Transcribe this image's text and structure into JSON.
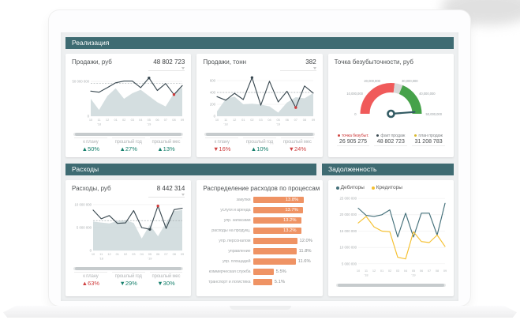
{
  "sections": {
    "realization": {
      "title": "Реализация"
    },
    "expenses": {
      "title": "Расходы"
    },
    "debt": {
      "title": "Задолженность"
    }
  },
  "panels": {
    "sales_rub": {
      "title": "Продажи, руб",
      "value": "48 802 723",
      "kpis": [
        {
          "label": "к плану",
          "arrow": "▲",
          "value": "50%",
          "tone": "good"
        },
        {
          "label": "прошлый год",
          "arrow": "▲",
          "value": "27%",
          "tone": "good"
        },
        {
          "label": "прошлый мес",
          "arrow": "▲",
          "value": "13%",
          "tone": "good"
        }
      ]
    },
    "sales_tonn": {
      "title": "Продажи, тонн",
      "value": "382",
      "kpis": [
        {
          "label": "к плану",
          "arrow": "▼",
          "value": "16%",
          "tone": "bad"
        },
        {
          "label": "прошлый год",
          "arrow": "▲",
          "value": "10%",
          "tone": "good"
        },
        {
          "label": "прошлый мес",
          "arrow": "▼",
          "value": "24%",
          "tone": "bad"
        }
      ]
    },
    "breakeven": {
      "title": "Точка безубыточности, руб",
      "legend": [
        {
          "label": "точка безубыт.",
          "value": "26 905 275",
          "bullet": "#d04a45",
          "label_color": "#cf4040"
        },
        {
          "label": "факт продаж",
          "value": "48 802 723",
          "bullet": "#3b4a52",
          "label_color": "#85898c"
        },
        {
          "label": "план продаж",
          "value": "31 208 783",
          "bullet": "#d8b92e",
          "label_color": "#85898c"
        }
      ]
    },
    "expenses_rub": {
      "title": "Расходы, руб",
      "value": "8 442 314",
      "kpis": [
        {
          "label": "к плану",
          "arrow": "▲",
          "value": "63%",
          "tone": "bad"
        },
        {
          "label": "прошлый год",
          "arrow": "▼",
          "value": "29%",
          "tone": "good"
        },
        {
          "label": "прошлый мес",
          "arrow": "▼",
          "value": "30%",
          "tone": "good"
        }
      ]
    },
    "expenses_dist": {
      "title": "Распределение расходов по процессам"
    },
    "debt": {
      "legend": [
        {
          "label": "Дебиторы",
          "color": "#44707a"
        },
        {
          "label": "Кредиторы",
          "color": "#f5c02f"
        }
      ]
    }
  },
  "chart_data": [
    {
      "id": "sales_rub",
      "type": "line",
      "title": "Продажи, руб",
      "x": [
        "10",
        "11",
        "12",
        "01",
        "02",
        "03",
        "04",
        "05",
        "06",
        "07",
        "08",
        "09"
      ],
      "year_labels": [
        "'18",
        "'19"
      ],
      "ylim": [
        0,
        58000000
      ],
      "yticks": [
        {
          "v": 50000000,
          "label": "50 000 000"
        },
        {
          "v": 0,
          "label": "0"
        }
      ],
      "plan": 47000000,
      "series": [
        {
          "name": "факт",
          "color": "#3b4a52",
          "values": [
            36000000,
            34500000,
            41000000,
            48000000,
            50500000,
            50500000,
            41000000,
            55000000,
            37000000,
            47000000,
            31000000,
            44000000
          ]
        },
        {
          "name": "прошлый год",
          "area": true,
          "color": "#ccd8db",
          "values": [
            25000000,
            9000000,
            29000000,
            40000000,
            25000000,
            33000000,
            38000000,
            29000000,
            20000000,
            14000000,
            33000000,
            41000000
          ]
        }
      ],
      "dots": [
        {
          "i": 7,
          "color": "#3b4a52"
        },
        {
          "i": 10,
          "color": "#cf3a3a"
        }
      ]
    },
    {
      "id": "sales_tonn",
      "type": "line",
      "title": "Продажи, тонн",
      "x": [
        "10",
        "11",
        "12",
        "01",
        "02",
        "03",
        "04",
        "05",
        "06",
        "07",
        "08",
        "09"
      ],
      "year_labels": [
        "'18",
        "'19"
      ],
      "ylim": [
        0,
        680
      ],
      "yticks": [
        {
          "v": 600,
          "label": "600"
        },
        {
          "v": 400,
          "label": "400"
        },
        {
          "v": 200,
          "label": "200"
        },
        {
          "v": 0,
          "label": "0"
        }
      ],
      "plan": 400,
      "series": [
        {
          "name": "факт",
          "color": "#3b4a52",
          "values": [
            330,
            270,
            385,
            280,
            650,
            185,
            590,
            240,
            420,
            145,
            510,
            390
          ]
        },
        {
          "name": "прошлый год",
          "area": true,
          "color": "#ccd8db",
          "values": [
            80,
            290,
            330,
            200,
            210,
            195,
            165,
            60,
            230,
            320,
            300,
            390
          ]
        }
      ],
      "dots": [
        {
          "i": 4,
          "color": "#3b4a52"
        },
        {
          "i": 9,
          "color": "#cf3a3a"
        }
      ]
    },
    {
      "id": "breakeven",
      "type": "gauge",
      "title": "Точка безубыточности, руб",
      "min": 0,
      "max": 50000000,
      "ticks": [
        {
          "v": 0,
          "label": "0"
        },
        {
          "v": 10000000,
          "label": "10,000,000"
        },
        {
          "v": 20000000,
          "label": "20,000,000"
        },
        {
          "v": 30000000,
          "label": "30,000,000"
        },
        {
          "v": 40000000,
          "label": "40,000,000"
        },
        {
          "v": 50000000,
          "label": "50,000,000"
        }
      ],
      "zones": [
        {
          "from": 0,
          "to": 26905275,
          "color": "#f05a5a"
        },
        {
          "from": 26905275,
          "to": 31208783,
          "color": "#d8d8d8"
        },
        {
          "from": 31208783,
          "to": 50000000,
          "color": "#46a24a"
        }
      ],
      "needle": 48802723
    },
    {
      "id": "expenses_rub",
      "type": "line",
      "title": "Расходы, руб",
      "x": [
        "10",
        "11",
        "12",
        "01",
        "02",
        "03",
        "04",
        "05",
        "06",
        "07",
        "08",
        "09"
      ],
      "year_labels": [
        "'18",
        "'19"
      ],
      "ylim": [
        0,
        10500000
      ],
      "yticks": [
        {
          "v": 10000000,
          "label": "10 000 000"
        },
        {
          "v": 5000000,
          "label": "5 000 000"
        },
        {
          "v": 0,
          "label": "0"
        }
      ],
      "plan": 6500000,
      "series": [
        {
          "name": "факт",
          "color": "#3b4a52",
          "values": [
            8800000,
            6900000,
            7600000,
            5900000,
            6000000,
            8700000,
            5000000,
            4600000,
            9700000,
            4800000,
            8900000,
            9200000
          ]
        },
        {
          "name": "прошлый год",
          "area": true,
          "color": "#ccd8db",
          "values": [
            6300000,
            6100000,
            5900000,
            6400000,
            6600000,
            6000000,
            2600000,
            5600000,
            3100000,
            6100000,
            8600000,
            8800000
          ]
        }
      ],
      "dots": [
        {
          "i": 7,
          "color": "#3b4a52"
        },
        {
          "i": 8,
          "color": "#cf3a3a"
        }
      ]
    },
    {
      "id": "expenses_dist",
      "type": "bar",
      "title": "Распределение расходов по процессам",
      "unit": "%",
      "bar_color": "#ef9364",
      "categories": [
        "закупки",
        "услуги и аренда",
        "упр. запасами",
        "расходы на продукц.",
        "упр. персоналом",
        "управление",
        "упр. площадей",
        "коммерческая служба",
        "транспорт и логистика"
      ],
      "values": [
        13.8,
        13.7,
        13.2,
        13.2,
        12.0,
        11.8,
        11.6,
        5.5,
        5.1
      ]
    },
    {
      "id": "debt",
      "type": "line",
      "title": "Задолженность",
      "x": [
        "10",
        "11",
        "12",
        "01",
        "02",
        "03",
        "04",
        "05",
        "06",
        "07",
        "08",
        "09"
      ],
      "year_labels": [
        "'18",
        "'19"
      ],
      "ylim": [
        4000000,
        26000000
      ],
      "yticks": [
        {
          "v": 25000000,
          "label": "25 000 000"
        },
        {
          "v": 20000000,
          "label": "20 000 000"
        },
        {
          "v": 15000000,
          "label": "15 000 000"
        },
        {
          "v": 10000000,
          "label": "10 000 000"
        },
        {
          "v": 5000000,
          "label": "5 000 000"
        }
      ],
      "series": [
        {
          "name": "Дебиторы",
          "color": "#44707a",
          "values": [
            22000000,
            19800000,
            19500000,
            20000000,
            21500000,
            13200000,
            20500000,
            13200000,
            20500000,
            20500000,
            13800000,
            23500000
          ]
        },
        {
          "name": "Кредиторы",
          "color": "#f5c02f",
          "values": [
            17500000,
            19500000,
            16300000,
            15000000,
            14800000,
            7000000,
            6500000,
            14800000,
            11800000,
            11500000,
            13800000,
            10300000
          ]
        }
      ]
    }
  ]
}
